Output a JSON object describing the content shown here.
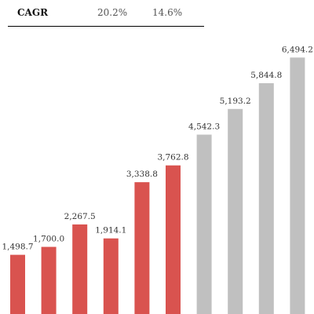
{
  "cagr": {
    "label": "CAGR",
    "values": [
      "20.2%",
      "14.6%"
    ]
  },
  "colors": {
    "historical": "#d9534f",
    "projected": "#c0c0c0"
  },
  "chart_data": {
    "type": "bar",
    "values": [
      1498.7,
      1700.0,
      2267.5,
      1914.1,
      3338.8,
      3762.8,
      4542.3,
      5193.2,
      5844.8,
      6494.2
    ],
    "labels": [
      "1,498.7",
      "1,700.0",
      "2,267.5",
      "1,914.1",
      "3,338.8",
      "3,762.8",
      "4,542.3",
      "5,193.2",
      "5,844.8",
      "6,494.2"
    ],
    "bar_kind": [
      "historical",
      "historical",
      "historical",
      "historical",
      "historical",
      "historical",
      "projected",
      "projected",
      "projected",
      "projected"
    ],
    "ylim": [
      0,
      7000
    ],
    "grid": false
  }
}
